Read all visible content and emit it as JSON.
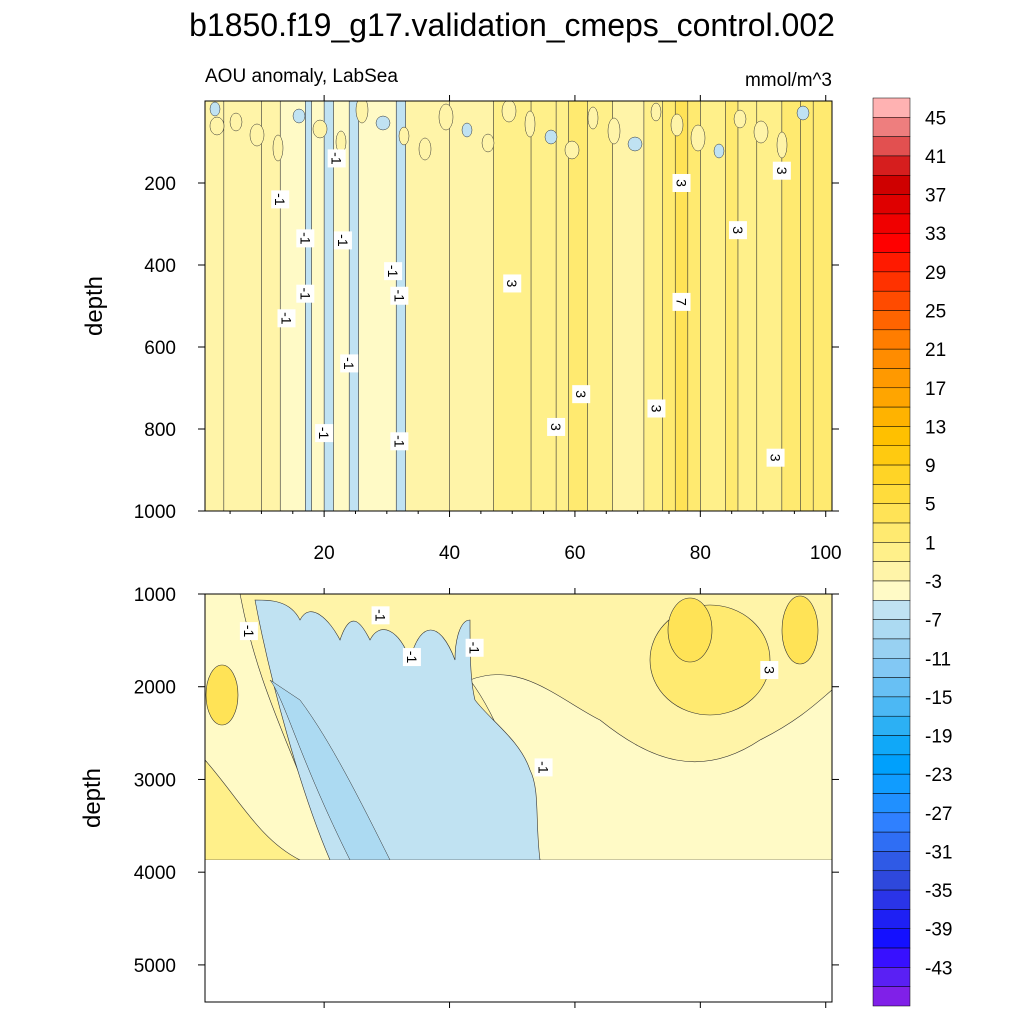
{
  "figure": {
    "title": "b1850.f19_g17.validation_cmeps_control.002"
  },
  "chart_data": [
    {
      "type": "heatmap",
      "panel": "top",
      "left_title": "AOU anomaly, LabSea",
      "right_title": "mmol/m^3",
      "xlabel": "",
      "ylabel": "depth",
      "xlim": [
        1,
        101
      ],
      "ylim": [
        1000,
        0
      ],
      "x_ticks": [
        20,
        40,
        60,
        80,
        100
      ],
      "x_tick_labels": [
        "20",
        "40",
        "60",
        "80",
        "100"
      ],
      "y_ticks": [
        200,
        400,
        600,
        800,
        1000
      ],
      "y_tick_labels": [
        "200",
        "400",
        "600",
        "800",
        "1000"
      ],
      "columns": [
        {
          "x": [
            1,
            4
          ],
          "value": 2
        },
        {
          "x": [
            4,
            10
          ],
          "value": 1.5
        },
        {
          "x": [
            10,
            13
          ],
          "value": 2
        },
        {
          "x": [
            13,
            17
          ],
          "value": 0.5
        },
        {
          "x": [
            17,
            18
          ],
          "value": -1.5
        },
        {
          "x": [
            18,
            20
          ],
          "value": 0.5
        },
        {
          "x": [
            20,
            21.5
          ],
          "value": -1.5
        },
        {
          "x": [
            21.5,
            24
          ],
          "value": 0.5
        },
        {
          "x": [
            24,
            25.5
          ],
          "value": -1.5
        },
        {
          "x": [
            25.5,
            31.5
          ],
          "value": 0.5
        },
        {
          "x": [
            31.5,
            33
          ],
          "value": -1.5
        },
        {
          "x": [
            33,
            40
          ],
          "value": 1.5
        },
        {
          "x": [
            40,
            47
          ],
          "value": 2
        },
        {
          "x": [
            47,
            53
          ],
          "value": 3
        },
        {
          "x": [
            53,
            57
          ],
          "value": 3.5
        },
        {
          "x": [
            57,
            59
          ],
          "value": 4.5
        },
        {
          "x": [
            59,
            62
          ],
          "value": 5.5
        },
        {
          "x": [
            62,
            66
          ],
          "value": 3
        },
        {
          "x": [
            66,
            71
          ],
          "value": 2
        },
        {
          "x": [
            71,
            74
          ],
          "value": 4
        },
        {
          "x": [
            74,
            76
          ],
          "value": 6
        },
        {
          "x": [
            76,
            78
          ],
          "value": 8
        },
        {
          "x": [
            78,
            80
          ],
          "value": 5
        },
        {
          "x": [
            80,
            84
          ],
          "value": 4
        },
        {
          "x": [
            84,
            86
          ],
          "value": 6
        },
        {
          "x": [
            86,
            89
          ],
          "value": 3
        },
        {
          "x": [
            89,
            93
          ],
          "value": 4
        },
        {
          "x": [
            93,
            96
          ],
          "value": 5
        },
        {
          "x": [
            96,
            98
          ],
          "value": 6
        },
        {
          "x": [
            98,
            101
          ],
          "value": 5
        }
      ],
      "contour_labels": [
        {
          "x": 22,
          "y": 140,
          "text": "-1"
        },
        {
          "x": 13,
          "y": 240,
          "text": "-1"
        },
        {
          "x": 17,
          "y": 335,
          "text": "-1"
        },
        {
          "x": 23,
          "y": 340,
          "text": "-1"
        },
        {
          "x": 31,
          "y": 415,
          "text": "-1"
        },
        {
          "x": 17,
          "y": 470,
          "text": "-1"
        },
        {
          "x": 32,
          "y": 475,
          "text": "-1"
        },
        {
          "x": 14,
          "y": 530,
          "text": "-1"
        },
        {
          "x": 24,
          "y": 640,
          "text": "-1"
        },
        {
          "x": 20,
          "y": 810,
          "text": "-1"
        },
        {
          "x": 32,
          "y": 830,
          "text": "-1"
        },
        {
          "x": 50,
          "y": 445,
          "text": "3"
        },
        {
          "x": 61,
          "y": 715,
          "text": "3"
        },
        {
          "x": 57,
          "y": 795,
          "text": "3"
        },
        {
          "x": 73,
          "y": 750,
          "text": "3"
        },
        {
          "x": 77,
          "y": 200,
          "text": "3"
        },
        {
          "x": 86,
          "y": 315,
          "text": "3"
        },
        {
          "x": 93,
          "y": 170,
          "text": "3"
        },
        {
          "x": 92,
          "y": 870,
          "text": "3"
        },
        {
          "x": 77,
          "y": 490,
          "text": "7"
        }
      ]
    },
    {
      "type": "heatmap",
      "panel": "bottom",
      "ylabel": "depth",
      "xlim": [
        1,
        101
      ],
      "ylim": [
        5400,
        1000
      ],
      "data_bottom": 3890,
      "y_ticks": [
        1000,
        2000,
        3000,
        4000,
        5000
      ],
      "y_tick_labels": [
        "1000",
        "2000",
        "3000",
        "4000",
        "5000"
      ],
      "contour_labels": [
        {
          "x": 8,
          "y": 1400,
          "text": "-1"
        },
        {
          "x": 29,
          "y": 1230,
          "text": "-1"
        },
        {
          "x": 34,
          "y": 1680,
          "text": "-1"
        },
        {
          "x": 44,
          "y": 1580,
          "text": "-1"
        },
        {
          "x": 55,
          "y": 2870,
          "text": "-1"
        },
        {
          "x": 91,
          "y": 1820,
          "text": "3"
        }
      ]
    }
  ],
  "colorbar": {
    "colors": [
      "#ffb2b2",
      "#ee7e7e",
      "#e25050",
      "#d61e1e",
      "#cf0000",
      "#df0000",
      "#f00000",
      "#ff0000",
      "#ff1a00",
      "#ff3200",
      "#ff4b00",
      "#ff6400",
      "#ff7d00",
      "#ff8c00",
      "#ff9900",
      "#ffa500",
      "#ffb300",
      "#ffc000",
      "#ffca10",
      "#ffd426",
      "#ffdc3c",
      "#ffe356",
      "#ffea70",
      "#fff08a",
      "#fff4a8",
      "#fffac6",
      "#c0e2f2",
      "#acdaf2",
      "#98d1f2",
      "#82c8f4",
      "#68c0f4",
      "#4cb8f4",
      "#2cb0f4",
      "#10a8f8",
      "#00a0fc",
      "#109cff",
      "#2090ff",
      "#2f80ff",
      "#2f6ef4",
      "#2f5ae6",
      "#2e48dc",
      "#2a34e8",
      "#1e20f4",
      "#1410ff",
      "#3810ff",
      "#5a20f4",
      "#8020e8"
    ],
    "labels": [
      "45",
      "41",
      "37",
      "33",
      "29",
      "25",
      "21",
      "17",
      "13",
      "9",
      "5",
      "1",
      "-3",
      "-7",
      "-11",
      "-15",
      "-19",
      "-23",
      "-27",
      "-31",
      "-35",
      "-39",
      "-43"
    ]
  }
}
